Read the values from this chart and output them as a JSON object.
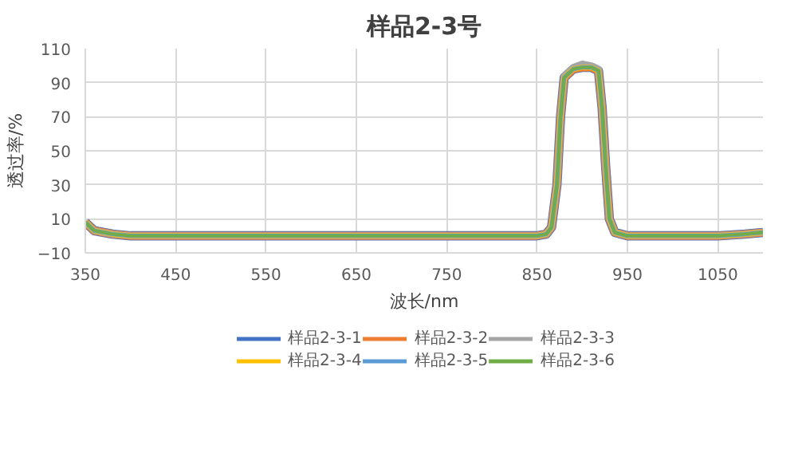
{
  "chart_data": {
    "type": "line",
    "title": "样品2-3号",
    "xlabel": "波长/nm",
    "ylabel": "透过率/%",
    "x": [
      350,
      360,
      380,
      400,
      500,
      600,
      700,
      800,
      850,
      860,
      866,
      872,
      876,
      880,
      890,
      900,
      910,
      918,
      922,
      926,
      930,
      936,
      950,
      1000,
      1050,
      1080,
      1100
    ],
    "series": [
      {
        "name": "样品2-3-1",
        "color": "#4472c4",
        "values": [
          8,
          3,
          1,
          0,
          0,
          0,
          0,
          0,
          0,
          1,
          5,
          30,
          70,
          93,
          98,
          99,
          99,
          97,
          75,
          40,
          10,
          2,
          0,
          0,
          0,
          1,
          2
        ]
      },
      {
        "name": "样品2-3-2",
        "color": "#ed7d31",
        "values": [
          8,
          3,
          1,
          0,
          0,
          0,
          0,
          0,
          0,
          1,
          5,
          30,
          70,
          93,
          98,
          99,
          99,
          97,
          75,
          40,
          10,
          2,
          0,
          0,
          0,
          1,
          2
        ]
      },
      {
        "name": "样品2-3-3",
        "color": "#a5a5a5",
        "values": [
          8,
          3,
          1,
          0,
          0,
          0,
          0,
          0,
          0,
          1,
          5,
          30,
          70,
          94,
          99,
          101,
          100,
          98,
          75,
          40,
          10,
          2,
          0,
          0,
          0,
          1,
          2
        ]
      },
      {
        "name": "样品2-3-4",
        "color": "#ffc000",
        "values": [
          8,
          3,
          1,
          0,
          0,
          0,
          0,
          0,
          0,
          1,
          5,
          30,
          70,
          93,
          98,
          99,
          99,
          97,
          75,
          40,
          10,
          2,
          0,
          0,
          0,
          1,
          2
        ]
      },
      {
        "name": "样品2-3-5",
        "color": "#5b9bd5",
        "values": [
          8,
          3,
          1,
          0,
          0,
          0,
          0,
          0,
          0,
          1,
          5,
          30,
          70,
          93,
          98,
          99,
          99,
          97,
          75,
          40,
          10,
          2,
          0,
          0,
          0,
          1,
          2
        ]
      },
      {
        "name": "样品2-3-6",
        "color": "#70ad47",
        "values": [
          8,
          3,
          1,
          0,
          0,
          0,
          0,
          0,
          0,
          1,
          5,
          30,
          70,
          93,
          98,
          99,
          99,
          97,
          75,
          40,
          10,
          2,
          0,
          0,
          0,
          1,
          2
        ]
      }
    ],
    "xlim": [
      350,
      1100
    ],
    "xticks": [
      350,
      450,
      550,
      650,
      750,
      850,
      950,
      1050
    ],
    "ylim": [
      -10,
      110
    ],
    "yticks": [
      -10,
      10,
      30,
      50,
      70,
      90,
      110
    ],
    "grid": true,
    "legend": "bottom"
  }
}
